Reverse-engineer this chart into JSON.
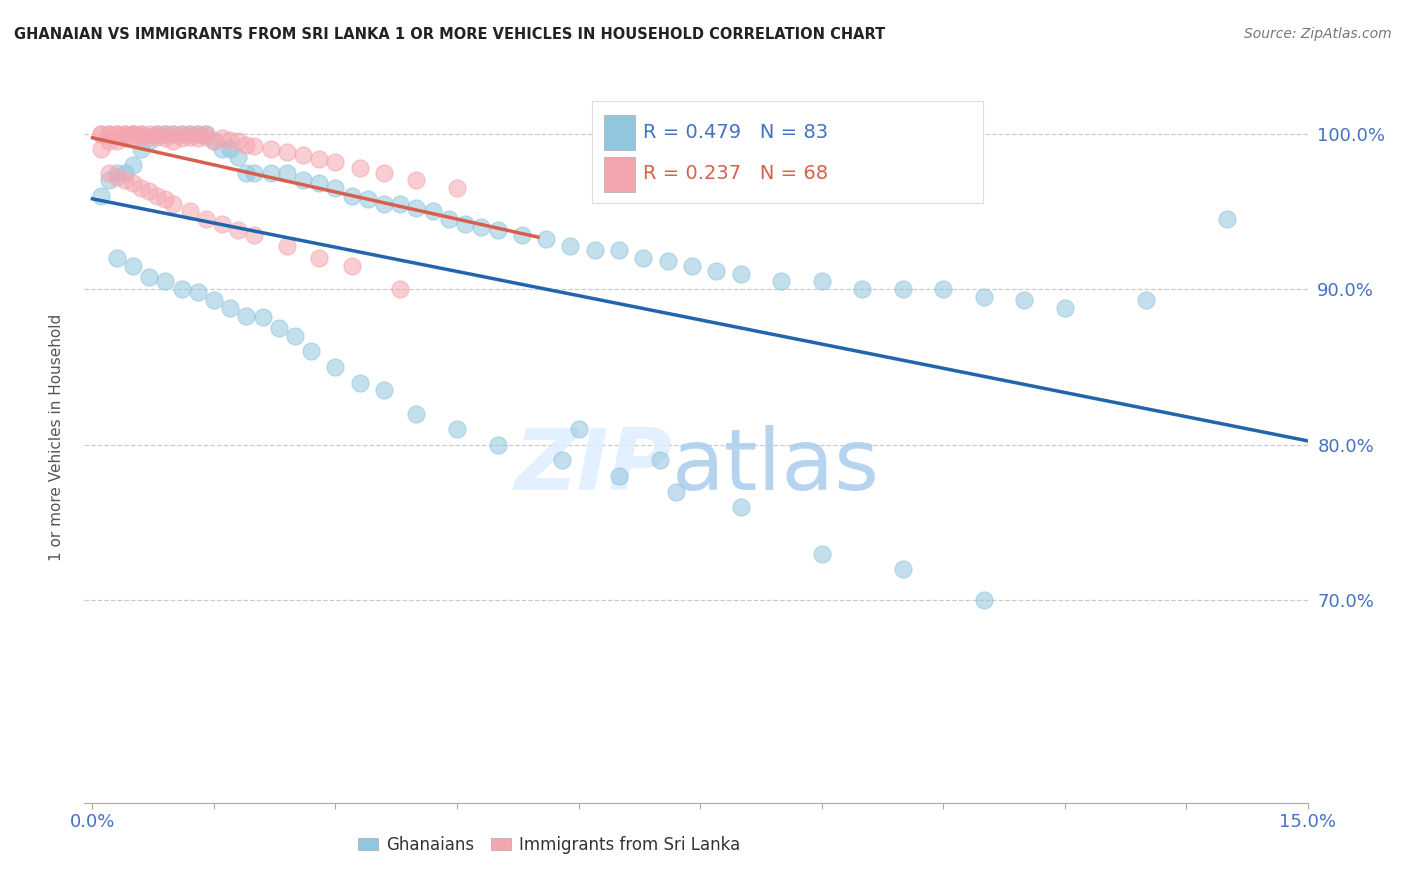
{
  "title": "GHANAIAN VS IMMIGRANTS FROM SRI LANKA 1 OR MORE VEHICLES IN HOUSEHOLD CORRELATION CHART",
  "source": "Source: ZipAtlas.com",
  "ylabel_label": "1 or more Vehicles in Household",
  "legend_labels": [
    "Ghanaians",
    "Immigrants from Sri Lanka"
  ],
  "R_ghanaians": 0.479,
  "N_ghanaians": 83,
  "R_srilanka": 0.237,
  "N_srilanka": 68,
  "color_ghanaians": "#92c5de",
  "color_srilanka": "#f4a6b0",
  "color_line_ghanaians": "#2166ac",
  "color_line_srilanka": "#d6604d",
  "background_color": "#ffffff",
  "watermark_zip": "ZIP",
  "watermark_atlas": "atlas",
  "xlim": [
    0.0,
    0.15
  ],
  "ylim": [
    0.57,
    1.04
  ],
  "yticks": [
    0.7,
    0.8,
    0.9,
    1.0
  ],
  "ytick_labels": [
    "70.0%",
    "80.0%",
    "90.0%",
    "100.0%"
  ],
  "xtick_labels_left": "0.0%",
  "xtick_labels_right": "15.0%",
  "ghanaians_x": [
    0.001,
    0.002,
    0.003,
    0.004,
    0.005,
    0.006,
    0.007,
    0.008,
    0.009,
    0.01,
    0.011,
    0.012,
    0.013,
    0.014,
    0.015,
    0.016,
    0.017,
    0.018,
    0.019,
    0.02,
    0.022,
    0.024,
    0.026,
    0.028,
    0.03,
    0.032,
    0.034,
    0.036,
    0.038,
    0.04,
    0.042,
    0.044,
    0.046,
    0.048,
    0.05,
    0.053,
    0.056,
    0.059,
    0.062,
    0.065,
    0.068,
    0.071,
    0.074,
    0.077,
    0.08,
    0.085,
    0.09,
    0.095,
    0.1,
    0.105,
    0.11,
    0.115,
    0.12,
    0.13,
    0.14,
    0.003,
    0.005,
    0.007,
    0.009,
    0.011,
    0.013,
    0.015,
    0.017,
    0.019,
    0.021,
    0.023,
    0.025,
    0.027,
    0.03,
    0.033,
    0.036,
    0.04,
    0.045,
    0.05,
    0.058,
    0.065,
    0.072,
    0.08,
    0.09,
    0.1,
    0.11,
    0.06,
    0.07
  ],
  "ghanaians_y": [
    0.96,
    0.97,
    0.975,
    0.975,
    0.98,
    0.99,
    0.995,
    1.0,
    1.0,
    1.0,
    1.0,
    1.0,
    1.0,
    1.0,
    0.995,
    0.99,
    0.99,
    0.985,
    0.975,
    0.975,
    0.975,
    0.975,
    0.97,
    0.968,
    0.965,
    0.96,
    0.958,
    0.955,
    0.955,
    0.952,
    0.95,
    0.945,
    0.942,
    0.94,
    0.938,
    0.935,
    0.932,
    0.928,
    0.925,
    0.925,
    0.92,
    0.918,
    0.915,
    0.912,
    0.91,
    0.905,
    0.905,
    0.9,
    0.9,
    0.9,
    0.895,
    0.893,
    0.888,
    0.893,
    0.945,
    0.92,
    0.915,
    0.908,
    0.905,
    0.9,
    0.898,
    0.893,
    0.888,
    0.883,
    0.882,
    0.875,
    0.87,
    0.86,
    0.85,
    0.84,
    0.835,
    0.82,
    0.81,
    0.8,
    0.79,
    0.78,
    0.77,
    0.76,
    0.73,
    0.72,
    0.7,
    0.81,
    0.79
  ],
  "srilanka_x": [
    0.001,
    0.001,
    0.001,
    0.002,
    0.002,
    0.002,
    0.003,
    0.003,
    0.003,
    0.004,
    0.004,
    0.004,
    0.005,
    0.005,
    0.005,
    0.005,
    0.006,
    0.006,
    0.006,
    0.007,
    0.007,
    0.008,
    0.008,
    0.009,
    0.009,
    0.01,
    0.01,
    0.011,
    0.011,
    0.012,
    0.012,
    0.013,
    0.013,
    0.014,
    0.014,
    0.015,
    0.016,
    0.017,
    0.018,
    0.019,
    0.02,
    0.022,
    0.024,
    0.026,
    0.028,
    0.03,
    0.033,
    0.036,
    0.04,
    0.045,
    0.002,
    0.003,
    0.004,
    0.005,
    0.006,
    0.007,
    0.008,
    0.009,
    0.01,
    0.012,
    0.014,
    0.016,
    0.018,
    0.02,
    0.024,
    0.028,
    0.032,
    0.038
  ],
  "srilanka_y": [
    0.99,
    1.0,
    1.0,
    0.995,
    1.0,
    1.0,
    0.995,
    1.0,
    1.0,
    0.997,
    1.0,
    1.0,
    0.997,
    1.0,
    1.0,
    1.0,
    0.998,
    1.0,
    1.0,
    0.998,
    1.0,
    0.998,
    1.0,
    0.997,
    1.0,
    0.995,
    1.0,
    0.997,
    1.0,
    0.998,
    1.0,
    0.997,
    1.0,
    0.998,
    1.0,
    0.995,
    0.997,
    0.996,
    0.995,
    0.993,
    0.992,
    0.99,
    0.988,
    0.986,
    0.984,
    0.982,
    0.978,
    0.975,
    0.97,
    0.965,
    0.975,
    0.972,
    0.97,
    0.968,
    0.965,
    0.963,
    0.96,
    0.958,
    0.955,
    0.95,
    0.945,
    0.942,
    0.938,
    0.935,
    0.928,
    0.92,
    0.915,
    0.9
  ]
}
